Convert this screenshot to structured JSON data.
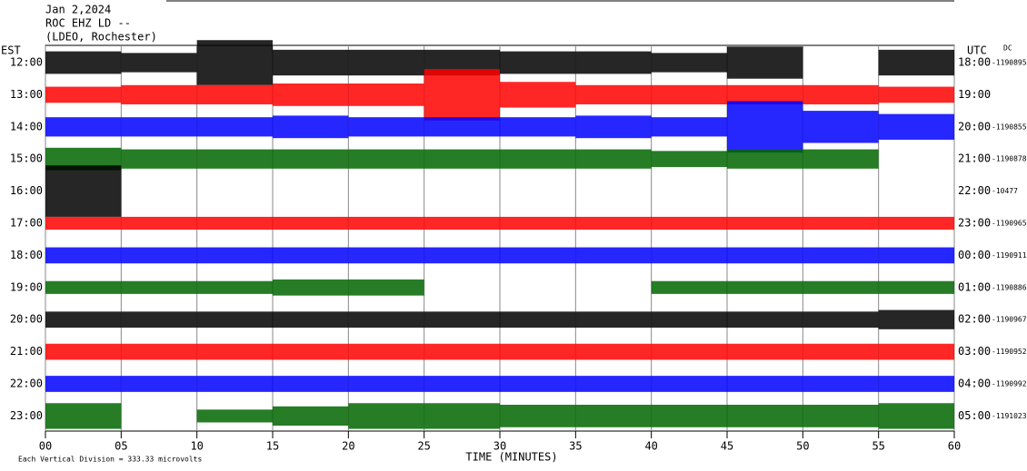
{
  "chart_data": {
    "type": "helicorder",
    "header": [
      "Jan 2,2024",
      "ROC EHZ LD --",
      "(LDEO, Rochester)"
    ],
    "left_axis_title": "EST",
    "right_axis_title": "UTC",
    "offset_title": "DC",
    "xlabel": "TIME (MINUTES)",
    "footnote": "Each Vertical Division = 333.33 microvolts",
    "xlim": [
      0,
      60
    ],
    "xticks": [
      {
        "value": 0,
        "label": "00"
      },
      {
        "value": 5,
        "label": "05"
      },
      10,
      15,
      20,
      25,
      30,
      35,
      40,
      45,
      50,
      55,
      60
    ],
    "grid": true,
    "segment_minutes": 5,
    "rows": [
      {
        "est": "12:00",
        "utc": "18:00",
        "offset": "-1190895",
        "color": "#000000",
        "values": [
          0.35,
          0.3,
          0.7,
          0.4,
          0.4,
          0.4,
          0.35,
          0.35,
          0.3,
          0.5,
          null,
          0.4
        ]
      },
      {
        "est": "13:00",
        "utc": "19:00",
        "offset": null,
        "color": "#ff0000",
        "values": [
          0.25,
          0.3,
          0.3,
          0.35,
          0.35,
          0.8,
          0.4,
          0.3,
          0.3,
          0.3,
          0.3,
          0.25
        ]
      },
      {
        "est": "14:00",
        "utc": "20:00",
        "offset": "-1190855",
        "color": "#0000ff",
        "values": [
          0.3,
          0.3,
          0.3,
          0.35,
          0.3,
          0.3,
          0.3,
          0.35,
          0.3,
          0.8,
          0.5,
          0.4
        ]
      },
      {
        "est": "15:00",
        "utc": "21:00",
        "offset": "-1190878",
        "color": "#006600",
        "values": [
          0.35,
          0.3,
          0.3,
          0.3,
          0.3,
          0.3,
          0.3,
          0.3,
          0.25,
          0.3,
          0.3,
          null
        ]
      },
      {
        "est": "16:00",
        "utc": "22:00",
        "offset": "-10477",
        "color": "#000000",
        "values": [
          0.8,
          null,
          null,
          null,
          null,
          null,
          null,
          null,
          null,
          null,
          null,
          null
        ]
      },
      {
        "est": "17:00",
        "utc": "23:00",
        "offset": "-1190965",
        "color": "#ff0000",
        "values": [
          0.2,
          0.2,
          0.2,
          0.2,
          0.2,
          0.2,
          0.2,
          0.2,
          0.2,
          0.2,
          0.2,
          0.2
        ]
      },
      {
        "est": "18:00",
        "utc": "00:00",
        "offset": "-1190911",
        "color": "#0000ff",
        "values": [
          0.25,
          0.25,
          0.25,
          0.25,
          0.25,
          0.25,
          0.25,
          0.25,
          0.25,
          0.25,
          0.25,
          0.25
        ]
      },
      {
        "est": "19:00",
        "utc": "01:00",
        "offset": "-1190886",
        "color": "#006600",
        "values": [
          0.2,
          0.2,
          0.2,
          0.25,
          0.25,
          null,
          null,
          null,
          0.2,
          0.2,
          0.2,
          0.2
        ]
      },
      {
        "est": "20:00",
        "utc": "02:00",
        "offset": "-1190967",
        "color": "#000000",
        "values": [
          0.25,
          0.25,
          0.25,
          0.25,
          0.25,
          0.25,
          0.25,
          0.25,
          0.25,
          0.25,
          0.25,
          0.3
        ]
      },
      {
        "est": "21:00",
        "utc": "03:00",
        "offset": "-1190952",
        "color": "#ff0000",
        "values": [
          0.25,
          0.25,
          0.25,
          0.25,
          0.25,
          0.25,
          0.25,
          0.25,
          0.25,
          0.25,
          0.25,
          0.25
        ]
      },
      {
        "est": "22:00",
        "utc": "04:00",
        "offset": "-1190992",
        "color": "#0000ff",
        "values": [
          0.25,
          0.25,
          0.25,
          0.25,
          0.25,
          0.25,
          0.25,
          0.25,
          0.25,
          0.25,
          0.25,
          0.25
        ]
      },
      {
        "est": "23:00",
        "utc": "05:00",
        "offset": "-1191023",
        "color": "#006600",
        "values": [
          0.4,
          null,
          0.2,
          0.3,
          0.4,
          0.4,
          0.35,
          0.35,
          0.35,
          0.35,
          0.35,
          0.4
        ]
      }
    ]
  }
}
